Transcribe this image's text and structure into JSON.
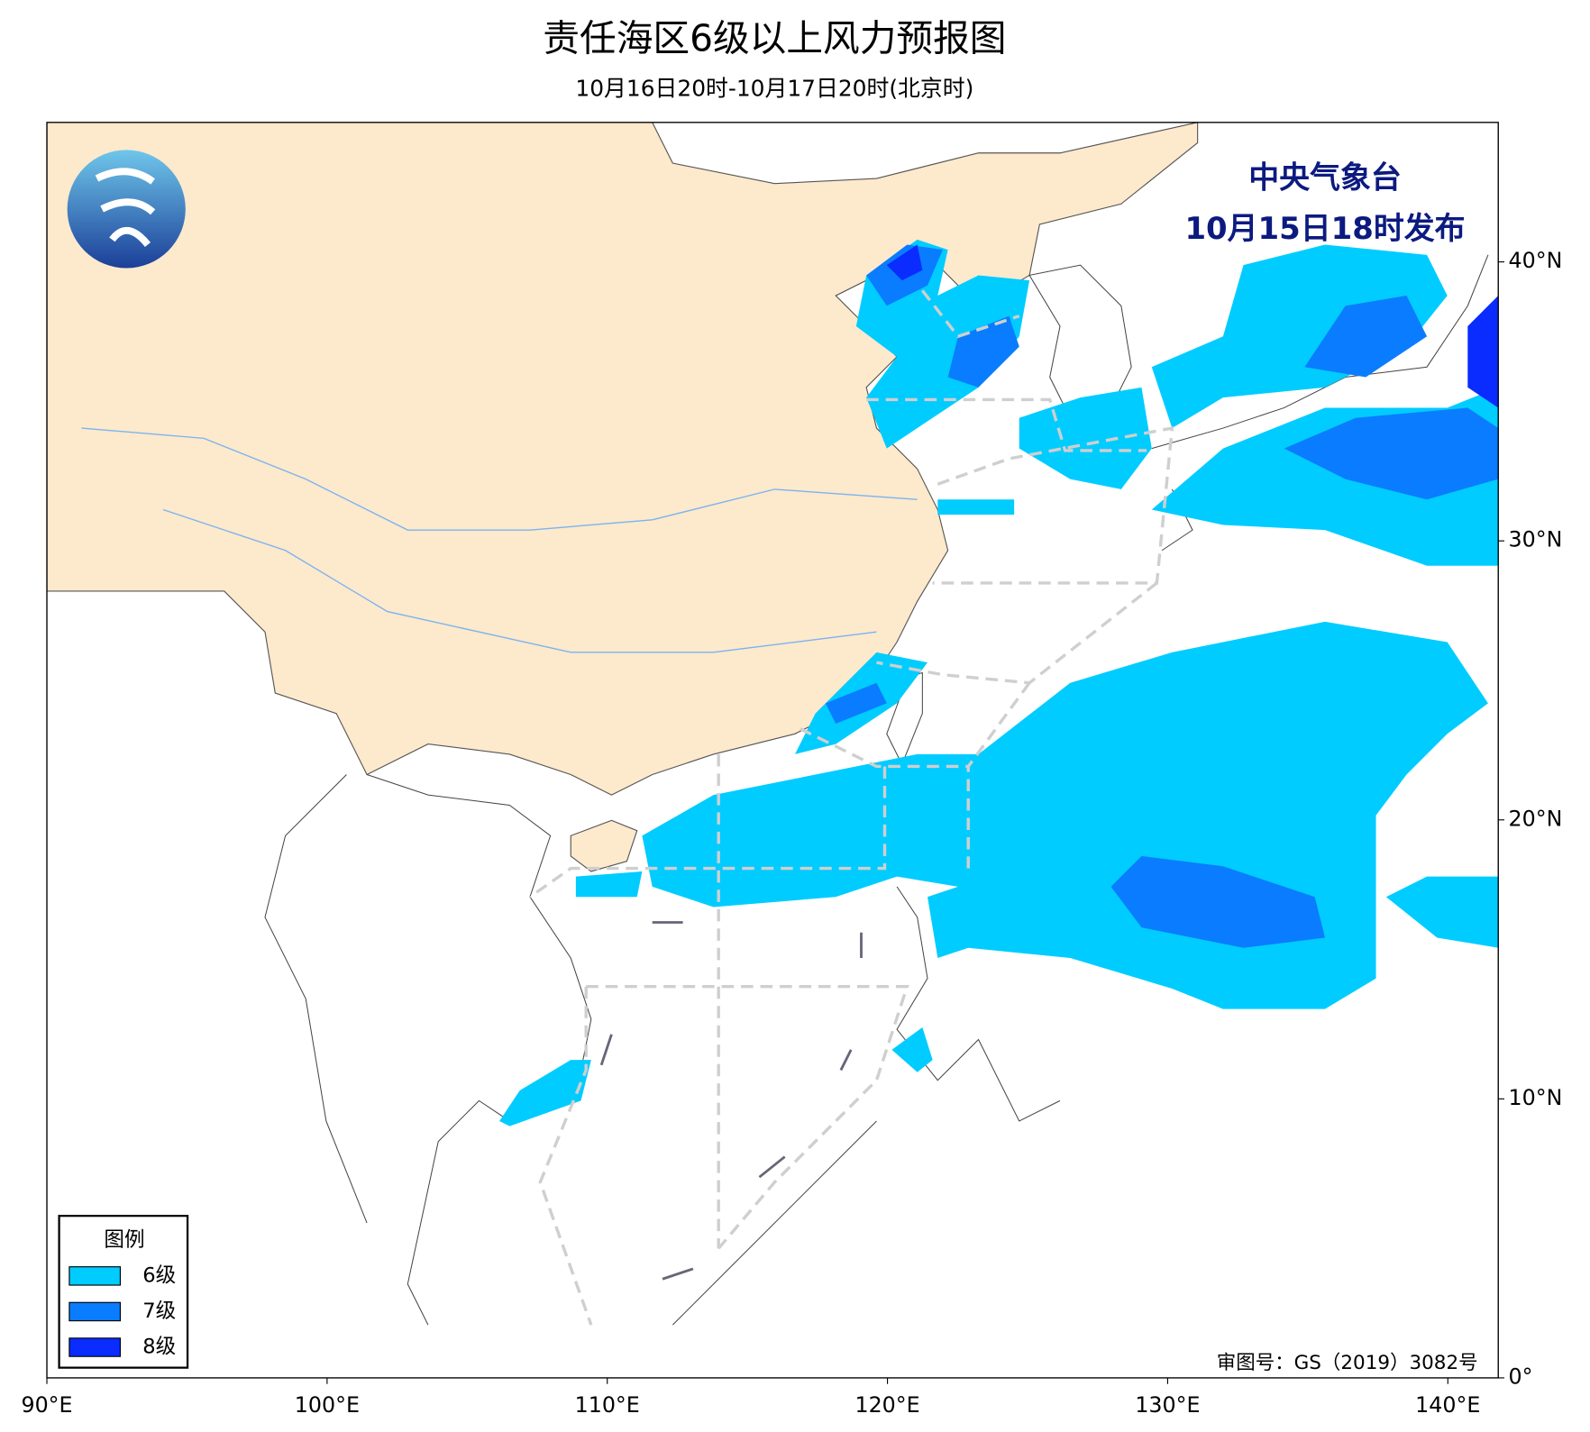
{
  "header": {
    "title": "责任海区6级以上风力预报图",
    "subtitle": "10月16日20时-10月17日20时(北京时)"
  },
  "issuer": {
    "name": "中央气象台",
    "time": "10月15日18时发布"
  },
  "map": {
    "xlim": [
      90,
      141.8
    ],
    "ylim": [
      0,
      45
    ],
    "xticks": [
      {
        "value": 90,
        "label": "90°E"
      },
      {
        "value": 100,
        "label": "100°E"
      },
      {
        "value": 110,
        "label": "110°E"
      },
      {
        "value": 120,
        "label": "120°E"
      },
      {
        "value": 130,
        "label": "130°E"
      },
      {
        "value": 140,
        "label": "140°E"
      }
    ],
    "yticks": [
      {
        "value": 0,
        "label": "0°"
      },
      {
        "value": 10,
        "label": "10°N"
      },
      {
        "value": 20,
        "label": "20°N"
      },
      {
        "value": 30,
        "label": "30°N"
      },
      {
        "value": 40,
        "label": "40°N"
      }
    ]
  },
  "legend": {
    "title": "图例",
    "items": [
      {
        "label": "6级",
        "color": "#00ccff"
      },
      {
        "label": "7级",
        "color": "#0a7cff"
      },
      {
        "label": "8级",
        "color": "#0a2cff"
      }
    ]
  },
  "approval": "审图号：GS（2019）3082号"
}
